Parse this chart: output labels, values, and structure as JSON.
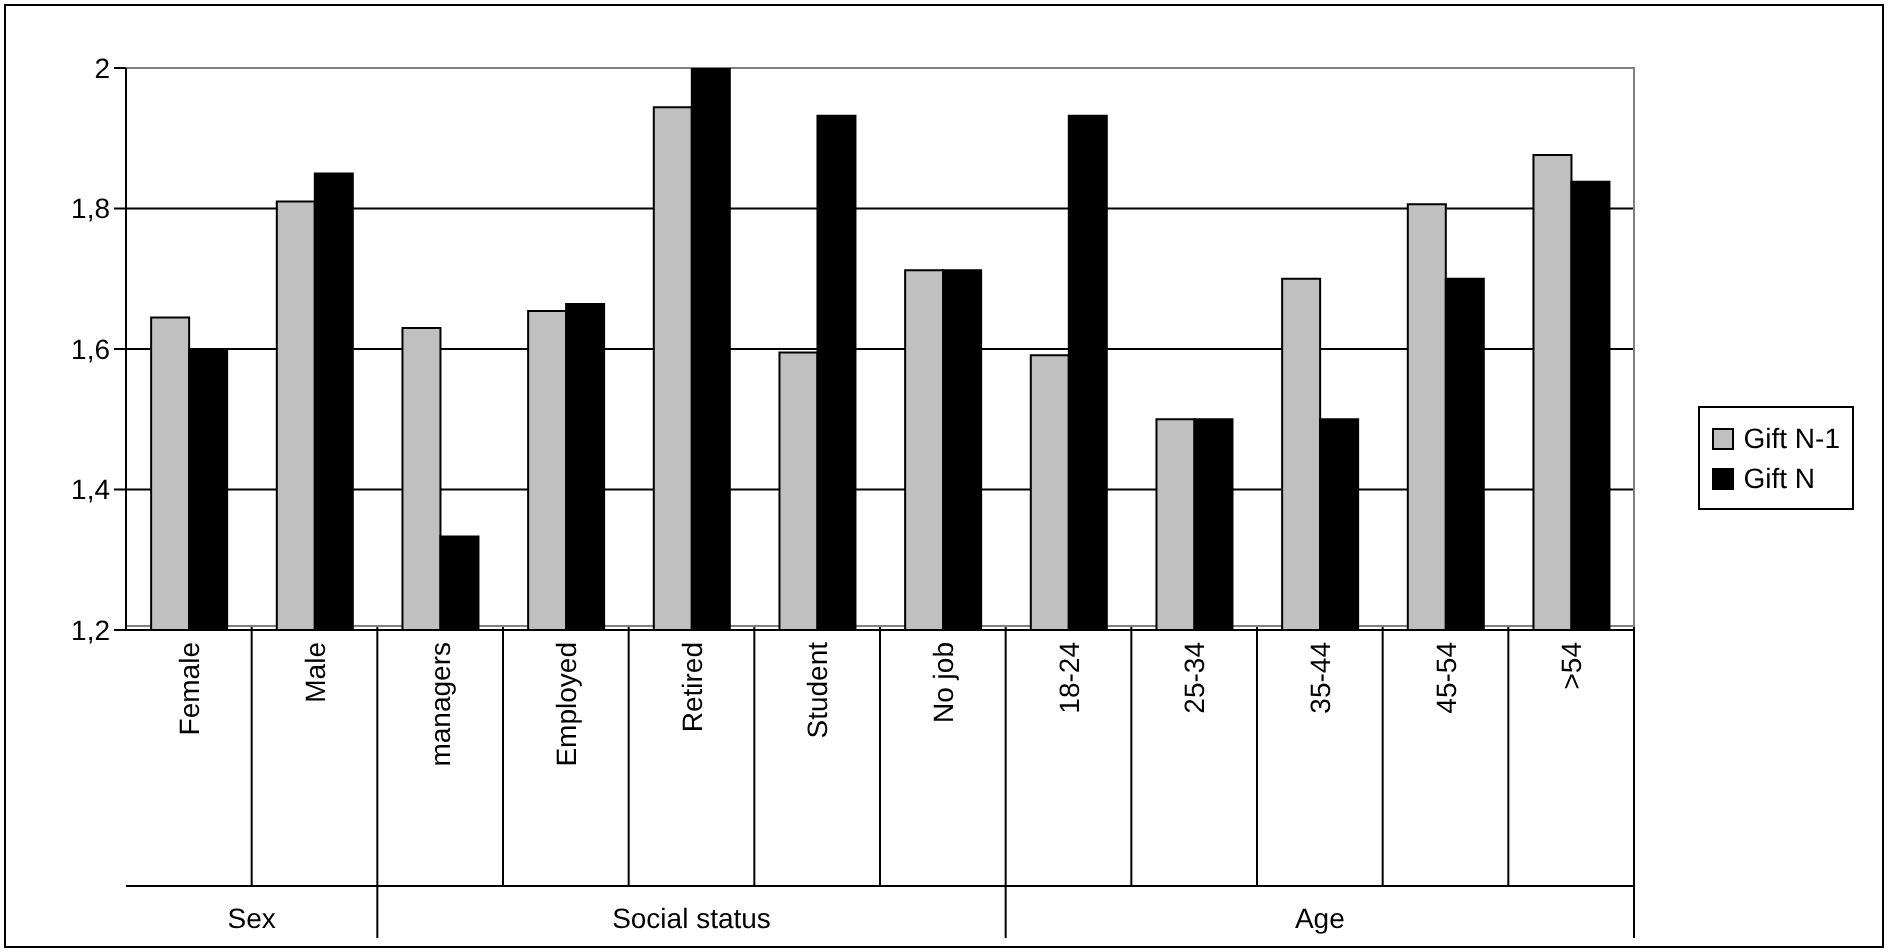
{
  "chart_data": {
    "type": "bar",
    "categories": [
      "Female",
      "Male",
      "managers",
      "Employed",
      "Retired",
      "Student",
      "No job",
      "18-24",
      "25-34",
      "35-44",
      "45-54",
      ">54"
    ],
    "series": [
      {
        "name": "Gift N-1",
        "color": "#c0c0c0",
        "values": [
          1.645,
          1.81,
          1.63,
          1.654,
          1.944,
          1.595,
          1.712,
          1.591,
          1.5,
          1.7,
          1.806,
          1.876
        ]
      },
      {
        "name": "Gift N",
        "color": "#000000",
        "values": [
          1.6,
          1.85,
          1.333,
          1.664,
          2.0,
          1.932,
          1.712,
          1.932,
          1.5,
          1.5,
          1.7,
          1.838
        ]
      }
    ],
    "ylim": [
      1.2,
      2
    ],
    "yticks": [
      {
        "value": 1.2,
        "label": "1,2"
      },
      {
        "value": 1.4,
        "label": "1,4"
      },
      {
        "value": 1.6,
        "label": "1,6"
      },
      {
        "value": 1.8,
        "label": "1,8"
      },
      {
        "value": 2,
        "label": "2"
      }
    ],
    "grid": "y",
    "legend": "right",
    "annotations": [
      "Sex",
      "Social status",
      "Age"
    ]
  }
}
